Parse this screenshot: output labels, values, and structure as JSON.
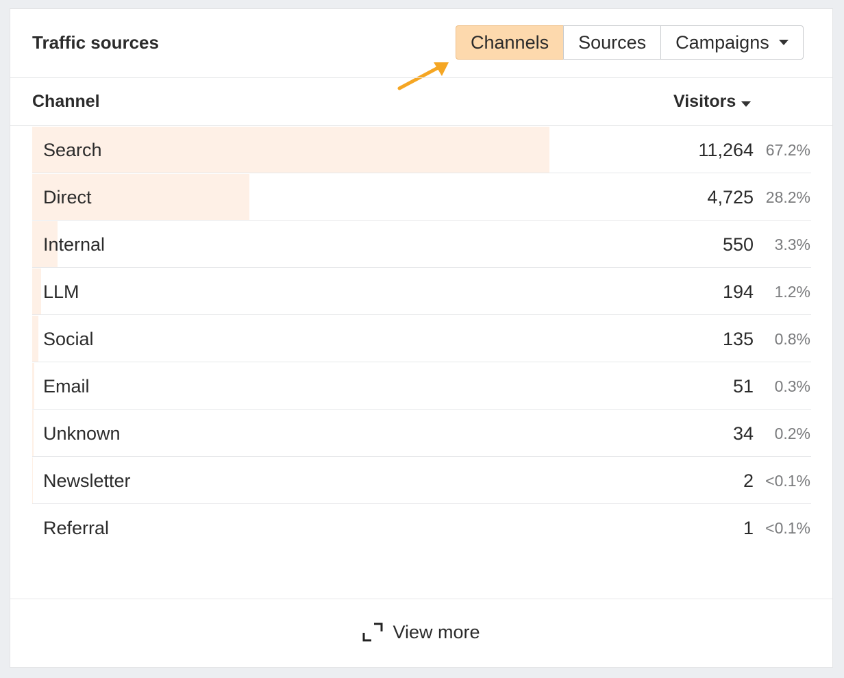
{
  "header": {
    "title": "Traffic sources",
    "tabs": [
      "Channels",
      "Sources",
      "Campaigns"
    ]
  },
  "table": {
    "columns": [
      "Channel",
      "Visitors"
    ],
    "rows": [
      {
        "channel": "Search",
        "visitors": {
          "value": 11264,
          "label": "11,264"
        },
        "share": "67.2%"
      },
      {
        "channel": "Direct",
        "visitors": {
          "value": 4725,
          "label": "4,725"
        },
        "share": "28.2%"
      },
      {
        "channel": "Internal",
        "visitors": {
          "value": 550,
          "label": "550"
        },
        "share": "3.3%"
      },
      {
        "channel": "LLM",
        "visitors": {
          "value": 194,
          "label": "194"
        },
        "share": "1.2%"
      },
      {
        "channel": "Social",
        "visitors": {
          "value": 135,
          "label": "135"
        },
        "share": "0.8%"
      },
      {
        "channel": "Email",
        "visitors": {
          "value": 51,
          "label": "51"
        },
        "share": "0.3%"
      },
      {
        "channel": "Unknown",
        "visitors": {
          "value": 34,
          "label": "34"
        },
        "share": "0.2%"
      },
      {
        "channel": "Newsletter",
        "visitors": {
          "value": 2,
          "label": "2"
        },
        "share": "<0.1%"
      },
      {
        "channel": "Referral",
        "visitors": {
          "value": 1,
          "label": "1"
        },
        "share": "<0.1%"
      }
    ]
  },
  "footer": {
    "link": "View more"
  }
}
